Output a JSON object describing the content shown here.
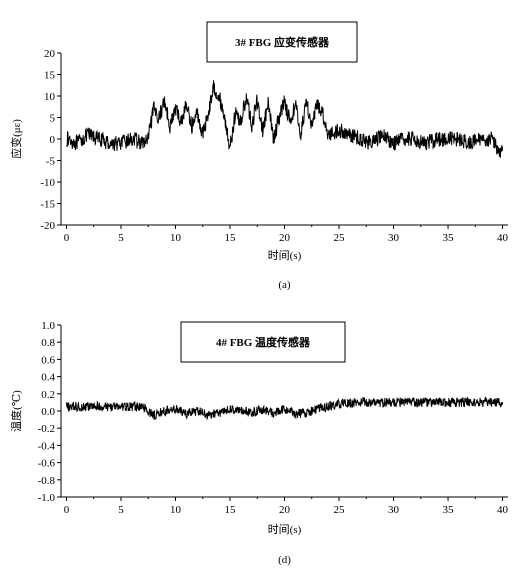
{
  "chart_data": [
    {
      "type": "line",
      "title": "3# FBG 应变传感器",
      "xlabel": "时间(s)",
      "ylabel": "应变(με)",
      "panel_label": "(a)",
      "xlim": [
        -0.5,
        40.5
      ],
      "ylim": [
        -20,
        20
      ],
      "xticks": [
        0,
        5,
        10,
        15,
        20,
        25,
        30,
        35,
        40
      ],
      "yticks": [
        -20,
        -15,
        -10,
        -5,
        0,
        5,
        10,
        15,
        20
      ],
      "xtick_labels": [
        "0",
        "5",
        "10",
        "15",
        "20",
        "25",
        "30",
        "35",
        "40"
      ],
      "ytick_labels": [
        "-20",
        "-15",
        "-10",
        "-5",
        "0",
        "5",
        "10",
        "15",
        "20"
      ],
      "line_color": "#000000",
      "grid": false,
      "series": [
        {
          "x": [
            0,
            1,
            2,
            3,
            4,
            5,
            6,
            7,
            7.5,
            8,
            8.5,
            9,
            9.5,
            10,
            10.5,
            11,
            11.5,
            12,
            12.5,
            13,
            13.5,
            14,
            14.5,
            15,
            15.5,
            16,
            16.5,
            17,
            17.5,
            18,
            18.5,
            19,
            19.5,
            20,
            20.5,
            21,
            21.5,
            22,
            22.5,
            23,
            23.5,
            24,
            25,
            26,
            27,
            28,
            29,
            30,
            31,
            32,
            33,
            34,
            35,
            36,
            37,
            38,
            39,
            39.5,
            40
          ],
          "y": [
            0,
            -1,
            1,
            0,
            -1,
            -1,
            0,
            -1,
            0,
            7,
            5,
            9,
            3,
            7,
            4,
            8,
            3,
            6,
            1,
            6,
            12,
            10,
            5,
            -2,
            6,
            4,
            10,
            3,
            9,
            2,
            8,
            0,
            5,
            9,
            4,
            8,
            1,
            9,
            3,
            8,
            6,
            1,
            2,
            1,
            0,
            -1,
            1,
            -1,
            0,
            0,
            -1,
            0,
            0,
            0,
            -1,
            0,
            0,
            -2,
            -3
          ]
        }
      ]
    },
    {
      "type": "line",
      "title": "4# FBG 温度传感器",
      "xlabel": "时间(s)",
      "ylabel": "温度(℃)",
      "panel_label": "(d)",
      "xlim": [
        -0.5,
        40.5
      ],
      "ylim": [
        -1.0,
        1.0
      ],
      "xticks": [
        0,
        5,
        10,
        15,
        20,
        25,
        30,
        35,
        40
      ],
      "yticks": [
        -1.0,
        -0.8,
        -0.6,
        -0.4,
        -0.2,
        0.0,
        0.2,
        0.4,
        0.6,
        0.8,
        1.0
      ],
      "xtick_labels": [
        "0",
        "5",
        "10",
        "15",
        "20",
        "25",
        "30",
        "35",
        "40"
      ],
      "ytick_labels": [
        "-1.0",
        "-0.8",
        "-0.6",
        "-0.4",
        "-0.2",
        "0.0",
        "0.2",
        "0.4",
        "0.6",
        "0.8",
        "1.0"
      ],
      "line_color": "#000000",
      "grid": false,
      "series": [
        {
          "x": [
            0,
            2,
            4,
            6,
            7,
            8,
            9,
            10,
            11,
            12,
            13,
            14,
            15,
            16,
            17,
            18,
            19,
            20,
            21,
            22,
            23,
            24,
            25,
            27,
            30,
            33,
            36,
            38,
            40
          ],
          "y": [
            0.05,
            0.05,
            0.05,
            0.05,
            0.05,
            -0.05,
            0.0,
            0.02,
            -0.03,
            0.0,
            -0.05,
            -0.02,
            0.02,
            0.0,
            -0.02,
            0.02,
            -0.03,
            0.02,
            -0.03,
            -0.02,
            0.02,
            0.05,
            0.08,
            0.1,
            0.1,
            0.1,
            0.1,
            0.1,
            0.1
          ]
        }
      ]
    }
  ]
}
